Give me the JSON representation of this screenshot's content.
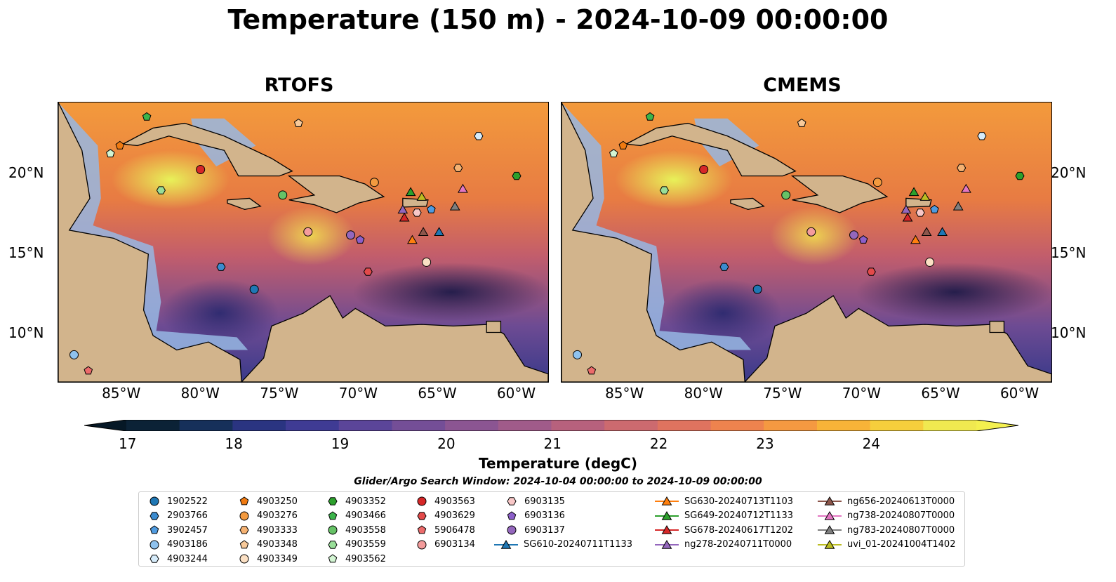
{
  "title": "Temperature (150 m) - 2024-10-09 00:00:00",
  "panels": [
    {
      "title": "RTOFS"
    },
    {
      "title": "CMEMS"
    }
  ],
  "lon_labels": [
    "85°W",
    "80°W",
    "75°W",
    "70°W",
    "65°W",
    "60°W"
  ],
  "lat_labels": [
    "20°N",
    "15°N",
    "10°N"
  ],
  "colorbar": {
    "title": "Temperature (degC)",
    "ticks": [
      "17",
      "18",
      "19",
      "20",
      "21",
      "22",
      "23",
      "24"
    ],
    "colors": [
      "#0b2236",
      "#16305a",
      "#2a3481",
      "#3f3b94",
      "#5b4599",
      "#744e97",
      "#8b5592",
      "#a05b8a",
      "#b7617d",
      "#cc6a6f",
      "#df735f",
      "#ee834e",
      "#f59941",
      "#f8b338",
      "#f6ce3c",
      "#f0e950"
    ]
  },
  "legend": {
    "caption": "Glider/Argo Search Window: 2024-10-04 00:00:00 to 2024-10-09 00:00:00",
    "items": [
      {
        "label": "1902522",
        "marker": "circle",
        "color": "#1f77b4"
      },
      {
        "label": "2903766",
        "marker": "hexagon",
        "color": "#3b8bcf"
      },
      {
        "label": "3902457",
        "marker": "pentagon",
        "color": "#4f9be0"
      },
      {
        "label": "4903186",
        "marker": "circle",
        "color": "#8fc2ee"
      },
      {
        "label": "4903244",
        "marker": "hexagon",
        "color": "#d6ecfb"
      },
      {
        "label": "4903250",
        "marker": "pentagon",
        "color": "#f07a10"
      },
      {
        "label": "4903276",
        "marker": "circle",
        "color": "#f39a3f"
      },
      {
        "label": "4903333",
        "marker": "hexagon",
        "color": "#f5b272"
      },
      {
        "label": "4903348",
        "marker": "pentagon",
        "color": "#f8ca9a"
      },
      {
        "label": "4903349",
        "marker": "circle",
        "color": "#fbe0c4"
      },
      {
        "label": "4903352",
        "marker": "hexagon",
        "color": "#2ca02c"
      },
      {
        "label": "4903466",
        "marker": "pentagon",
        "color": "#3cb44b"
      },
      {
        "label": "4903558",
        "marker": "circle",
        "color": "#66c266"
      },
      {
        "label": "4903559",
        "marker": "hexagon",
        "color": "#98de98"
      },
      {
        "label": "4903562",
        "marker": "pentagon",
        "color": "#d3f5d3"
      },
      {
        "label": "4903563",
        "marker": "circle",
        "color": "#d62728"
      },
      {
        "label": "4903629",
        "marker": "hexagon",
        "color": "#e34a4a"
      },
      {
        "label": "5906478",
        "marker": "pentagon",
        "color": "#ec6b6b"
      },
      {
        "label": "6903134",
        "marker": "circle",
        "color": "#f49c9c"
      },
      {
        "label": "6903135",
        "marker": "hexagon",
        "color": "#f8c7c7"
      },
      {
        "label": "6903136",
        "marker": "pentagon",
        "color": "#8c5fc9"
      },
      {
        "label": "6903137",
        "marker": "circle",
        "color": "#9467bd"
      },
      {
        "label": "SG610-20240711T1133",
        "marker": "triangle",
        "color": "#1f77b4",
        "line": true
      },
      {
        "label": "SG630-20240713T1103",
        "marker": "triangle",
        "color": "#ff7f0e",
        "line": true
      },
      {
        "label": "SG649-20240712T1133",
        "marker": "triangle",
        "color": "#2ca02c",
        "line": true
      },
      {
        "label": "SG678-20240617T1202",
        "marker": "triangle",
        "color": "#d62728",
        "line": true
      },
      {
        "label": "ng278-20240711T0000",
        "marker": "triangle",
        "color": "#9467bd",
        "line": true
      },
      {
        "label": "ng656-20240613T0000",
        "marker": "triangle",
        "color": "#8c564b",
        "line": true
      },
      {
        "label": "ng738-20240807T0000",
        "marker": "triangle",
        "color": "#e377c2",
        "line": true
      },
      {
        "label": "ng783-20240807T0000",
        "marker": "triangle",
        "color": "#7f7f7f",
        "line": true
      },
      {
        "label": "uvi_01-20241004T1402",
        "marker": "triangle",
        "color": "#bcbd22",
        "line": true
      }
    ]
  },
  "map_markers": [
    {
      "name": "1902522",
      "marker": "circle",
      "color": "#1f77b4",
      "lon": -76.6,
      "lat": 12.8
    },
    {
      "name": "2903766",
      "marker": "hexagon",
      "color": "#3b8bcf",
      "lon": -78.7,
      "lat": 14.2
    },
    {
      "name": "3902457",
      "marker": "pentagon",
      "color": "#4f9be0",
      "lon": -65.4,
      "lat": 17.8
    },
    {
      "name": "4903186",
      "marker": "circle",
      "color": "#8fc2ee",
      "lon": -88.0,
      "lat": 8.7
    },
    {
      "name": "4903244",
      "marker": "hexagon",
      "color": "#d6ecfb",
      "lon": -62.4,
      "lat": 22.4
    },
    {
      "name": "4903250",
      "marker": "pentagon",
      "color": "#f07a10",
      "lon": -85.1,
      "lat": 21.8
    },
    {
      "name": "4903276",
      "marker": "circle",
      "color": "#f39a3f",
      "lon": -69.0,
      "lat": 19.5
    },
    {
      "name": "4903333",
      "marker": "hexagon",
      "color": "#f5b272",
      "lon": -63.7,
      "lat": 20.4
    },
    {
      "name": "4903348",
      "marker": "pentagon",
      "color": "#f8ca9a",
      "lon": -73.8,
      "lat": 23.2
    },
    {
      "name": "4903349",
      "marker": "circle",
      "color": "#fbe0c4",
      "lon": -65.7,
      "lat": 14.5
    },
    {
      "name": "4903352",
      "marker": "hexagon",
      "color": "#2ca02c",
      "lon": -60.0,
      "lat": 19.9
    },
    {
      "name": "4903466",
      "marker": "pentagon",
      "color": "#3cb44b",
      "lon": -83.4,
      "lat": 23.6
    },
    {
      "name": "4903558",
      "marker": "circle",
      "color": "#66c266",
      "lon": -74.8,
      "lat": 18.7
    },
    {
      "name": "4903559",
      "marker": "hexagon",
      "color": "#98de98",
      "lon": -82.5,
      "lat": 19.0
    },
    {
      "name": "4903562",
      "marker": "pentagon",
      "color": "#d3f5d3",
      "lon": -85.7,
      "lat": 21.3
    },
    {
      "name": "4903563",
      "marker": "circle",
      "color": "#d62728",
      "lon": -80.0,
      "lat": 20.3
    },
    {
      "name": "4903629",
      "marker": "hexagon",
      "color": "#e34a4a",
      "lon": -69.4,
      "lat": 13.9
    },
    {
      "name": "5906478",
      "marker": "pentagon",
      "color": "#ec6b6b",
      "lon": -87.1,
      "lat": 7.7
    },
    {
      "name": "6903134",
      "marker": "circle",
      "color": "#f49c9c",
      "lon": -73.2,
      "lat": 16.4
    },
    {
      "name": "6903135",
      "marker": "hexagon",
      "color": "#f8c7c7",
      "lon": -66.3,
      "lat": 17.6
    },
    {
      "name": "6903136",
      "marker": "pentagon",
      "color": "#8c5fc9",
      "lon": -69.9,
      "lat": 15.9
    },
    {
      "name": "6903137",
      "marker": "circle",
      "color": "#9467bd",
      "lon": -70.5,
      "lat": 16.2
    },
    {
      "name": "SG610-20240711T1133",
      "marker": "triangle",
      "color": "#1f77b4",
      "lon": -64.9,
      "lat": 16.4
    },
    {
      "name": "SG630-20240713T1103",
      "marker": "triangle",
      "color": "#ff7f0e",
      "lon": -66.6,
      "lat": 15.9
    },
    {
      "name": "SG649-20240712T1133",
      "marker": "triangle",
      "color": "#2ca02c",
      "lon": -66.7,
      "lat": 18.9
    },
    {
      "name": "SG678-20240617T1202",
      "marker": "triangle",
      "color": "#d62728",
      "lon": -67.1,
      "lat": 17.3
    },
    {
      "name": "ng278-20240711T0000",
      "marker": "triangle",
      "color": "#9467bd",
      "lon": -67.2,
      "lat": 17.8
    },
    {
      "name": "ng656-20240613T0000",
      "marker": "triangle",
      "color": "#8c564b",
      "lon": -65.9,
      "lat": 16.4
    },
    {
      "name": "ng738-20240807T0000",
      "marker": "triangle",
      "color": "#e377c2",
      "lon": -63.4,
      "lat": 19.1
    },
    {
      "name": "ng783-20240807T0000",
      "marker": "triangle",
      "color": "#7f7f7f",
      "lon": -63.9,
      "lat": 18.0
    },
    {
      "name": "uvi_01-20241004T1402",
      "marker": "triangle",
      "color": "#bcbd22",
      "lon": -66.0,
      "lat": 18.6
    }
  ]
}
